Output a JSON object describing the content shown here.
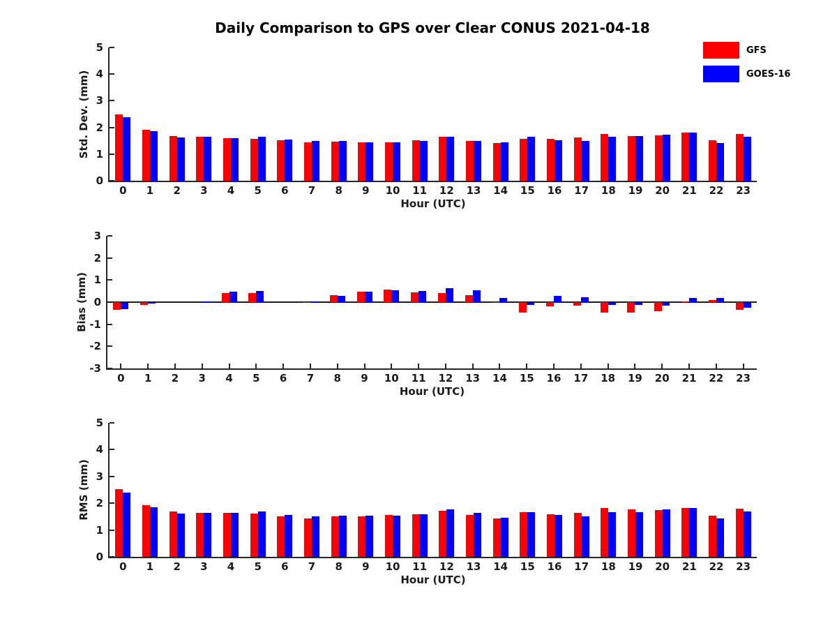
{
  "title": "Daily Comparison to GPS over Clear CONUS 2021-04-18",
  "legend": {
    "items": [
      {
        "label": "GFS",
        "color": "#ff0000"
      },
      {
        "label": "GOES-16",
        "color": "#0000ff"
      }
    ]
  },
  "chart_data": [
    {
      "type": "bar",
      "name": "std-dev",
      "ylabel": "Std. Dev. (mm)",
      "xlabel": "Hour (UTC)",
      "ylim": [
        0,
        5
      ],
      "yticks": [
        0,
        1,
        2,
        3,
        4,
        5
      ],
      "grid": false,
      "legend_position": "upper-right-outside",
      "categories": [
        "0",
        "1",
        "2",
        "3",
        "4",
        "5",
        "6",
        "7",
        "8",
        "9",
        "10",
        "11",
        "12",
        "13",
        "14",
        "15",
        "16",
        "17",
        "18",
        "19",
        "20",
        "21",
        "22",
        "23"
      ],
      "series": [
        {
          "name": "GFS",
          "color": "#ff0000",
          "values": [
            2.5,
            1.92,
            1.67,
            1.65,
            1.6,
            1.57,
            1.52,
            1.45,
            1.47,
            1.45,
            1.45,
            1.52,
            1.65,
            1.5,
            1.42,
            1.57,
            1.58,
            1.63,
            1.75,
            1.68,
            1.7,
            1.8,
            1.52,
            1.75
          ]
        },
        {
          "name": "GOES-16",
          "color": "#0000ff",
          "values": [
            2.38,
            1.85,
            1.62,
            1.65,
            1.6,
            1.65,
            1.55,
            1.5,
            1.5,
            1.45,
            1.45,
            1.5,
            1.65,
            1.5,
            1.43,
            1.65,
            1.52,
            1.5,
            1.65,
            1.67,
            1.73,
            1.81,
            1.42,
            1.65
          ]
        }
      ]
    },
    {
      "type": "bar",
      "name": "bias",
      "ylabel": "Bias (mm)",
      "xlabel": "Hour (UTC)",
      "ylim": [
        -3,
        3
      ],
      "yticks": [
        -3,
        -2,
        -1,
        0,
        1,
        2,
        3
      ],
      "grid": false,
      "zero_line": true,
      "categories": [
        "0",
        "1",
        "2",
        "3",
        "4",
        "5",
        "6",
        "7",
        "8",
        "9",
        "10",
        "11",
        "12",
        "13",
        "14",
        "15",
        "16",
        "17",
        "18",
        "19",
        "20",
        "21",
        "22",
        "23"
      ],
      "series": [
        {
          "name": "GFS",
          "color": "#ff0000",
          "values": [
            -0.35,
            -0.12,
            0.0,
            0.0,
            0.4,
            0.4,
            0.0,
            -0.02,
            0.31,
            0.46,
            0.58,
            0.44,
            0.42,
            0.33,
            -0.03,
            -0.46,
            -0.19,
            -0.16,
            -0.46,
            -0.48,
            -0.4,
            0.03,
            0.08,
            -0.35
          ]
        },
        {
          "name": "GOES-16",
          "color": "#0000ff",
          "values": [
            -0.3,
            -0.06,
            0.0,
            0.03,
            0.46,
            0.49,
            0.0,
            0.03,
            0.27,
            0.47,
            0.53,
            0.51,
            0.62,
            0.55,
            0.19,
            -0.13,
            0.29,
            0.22,
            -0.12,
            -0.14,
            -0.16,
            0.18,
            0.18,
            -0.25
          ]
        }
      ]
    },
    {
      "type": "bar",
      "name": "rms",
      "ylabel": "RMS (mm)",
      "xlabel": "Hour (UTC)",
      "ylim": [
        0,
        5
      ],
      "yticks": [
        0,
        1,
        2,
        3,
        4,
        5
      ],
      "grid": false,
      "categories": [
        "0",
        "1",
        "2",
        "3",
        "4",
        "5",
        "6",
        "7",
        "8",
        "9",
        "10",
        "11",
        "12",
        "13",
        "14",
        "15",
        "16",
        "17",
        "18",
        "19",
        "20",
        "21",
        "22",
        "23"
      ],
      "series": [
        {
          "name": "GFS",
          "color": "#ff0000",
          "values": [
            2.53,
            1.93,
            1.68,
            1.65,
            1.65,
            1.62,
            1.52,
            1.43,
            1.5,
            1.52,
            1.57,
            1.59,
            1.71,
            1.57,
            1.44,
            1.67,
            1.6,
            1.65,
            1.83,
            1.78,
            1.74,
            1.82,
            1.54,
            1.8
          ]
        },
        {
          "name": "GOES-16",
          "color": "#0000ff",
          "values": [
            2.4,
            1.85,
            1.62,
            1.65,
            1.65,
            1.7,
            1.56,
            1.5,
            1.54,
            1.54,
            1.53,
            1.59,
            1.77,
            1.63,
            1.47,
            1.67,
            1.57,
            1.52,
            1.67,
            1.67,
            1.77,
            1.82,
            1.44,
            1.7
          ]
        }
      ]
    }
  ]
}
